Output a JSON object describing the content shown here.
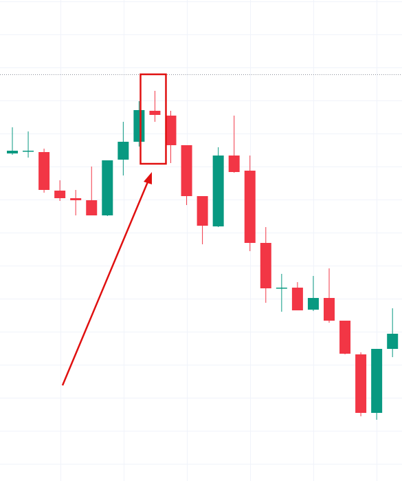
{
  "chart_data": {
    "type": "candlestick",
    "ylim": [
      0,
      699
    ],
    "up_color": "#089981",
    "down_color": "#f23645",
    "open": [
      476,
      479,
      478,
      422,
      411,
      408,
      386,
      467,
      493,
      538,
      531,
      488,
      414,
      370,
      473,
      451,
      346,
      280,
      281,
      249,
      266,
      233,
      184,
      99,
      192
    ],
    "high": [
      514,
      508,
      483,
      437,
      423,
      457,
      466,
      522,
      552,
      567,
      538,
      488,
      414,
      485,
      531,
      473,
      369,
      301,
      289,
      298,
      309,
      233,
      187,
      192,
      251
    ],
    "low": [
      474,
      470,
      419,
      407,
      386,
      386,
      385,
      444,
      486,
      522,
      462,
      401,
      344,
      369,
      448,
      334,
      259,
      246,
      248,
      247,
      230,
      184,
      94,
      89,
      180
    ],
    "close": [
      480,
      480,
      423,
      411,
      408,
      386,
      466,
      493,
      539,
      532,
      488,
      414,
      371,
      473,
      449,
      346,
      280,
      281,
      248,
      266,
      233,
      185,
      99,
      192,
      214
    ]
  }
}
